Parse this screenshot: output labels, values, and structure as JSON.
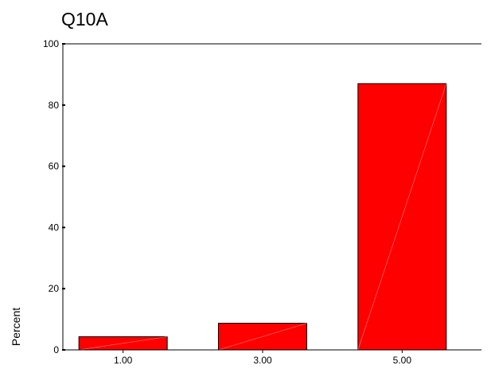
{
  "chart_data": {
    "type": "bar",
    "title": "Q10A",
    "xlabel": "",
    "ylabel": "Percent",
    "categories": [
      "1.00",
      "3.00",
      "5.00"
    ],
    "values": [
      4.3,
      8.7,
      87.0
    ],
    "ylim": [
      0,
      100
    ],
    "yticks": [
      0,
      20,
      40,
      60,
      80,
      100
    ],
    "grid": false,
    "legend": "none",
    "bar_color": "#ff0000"
  }
}
